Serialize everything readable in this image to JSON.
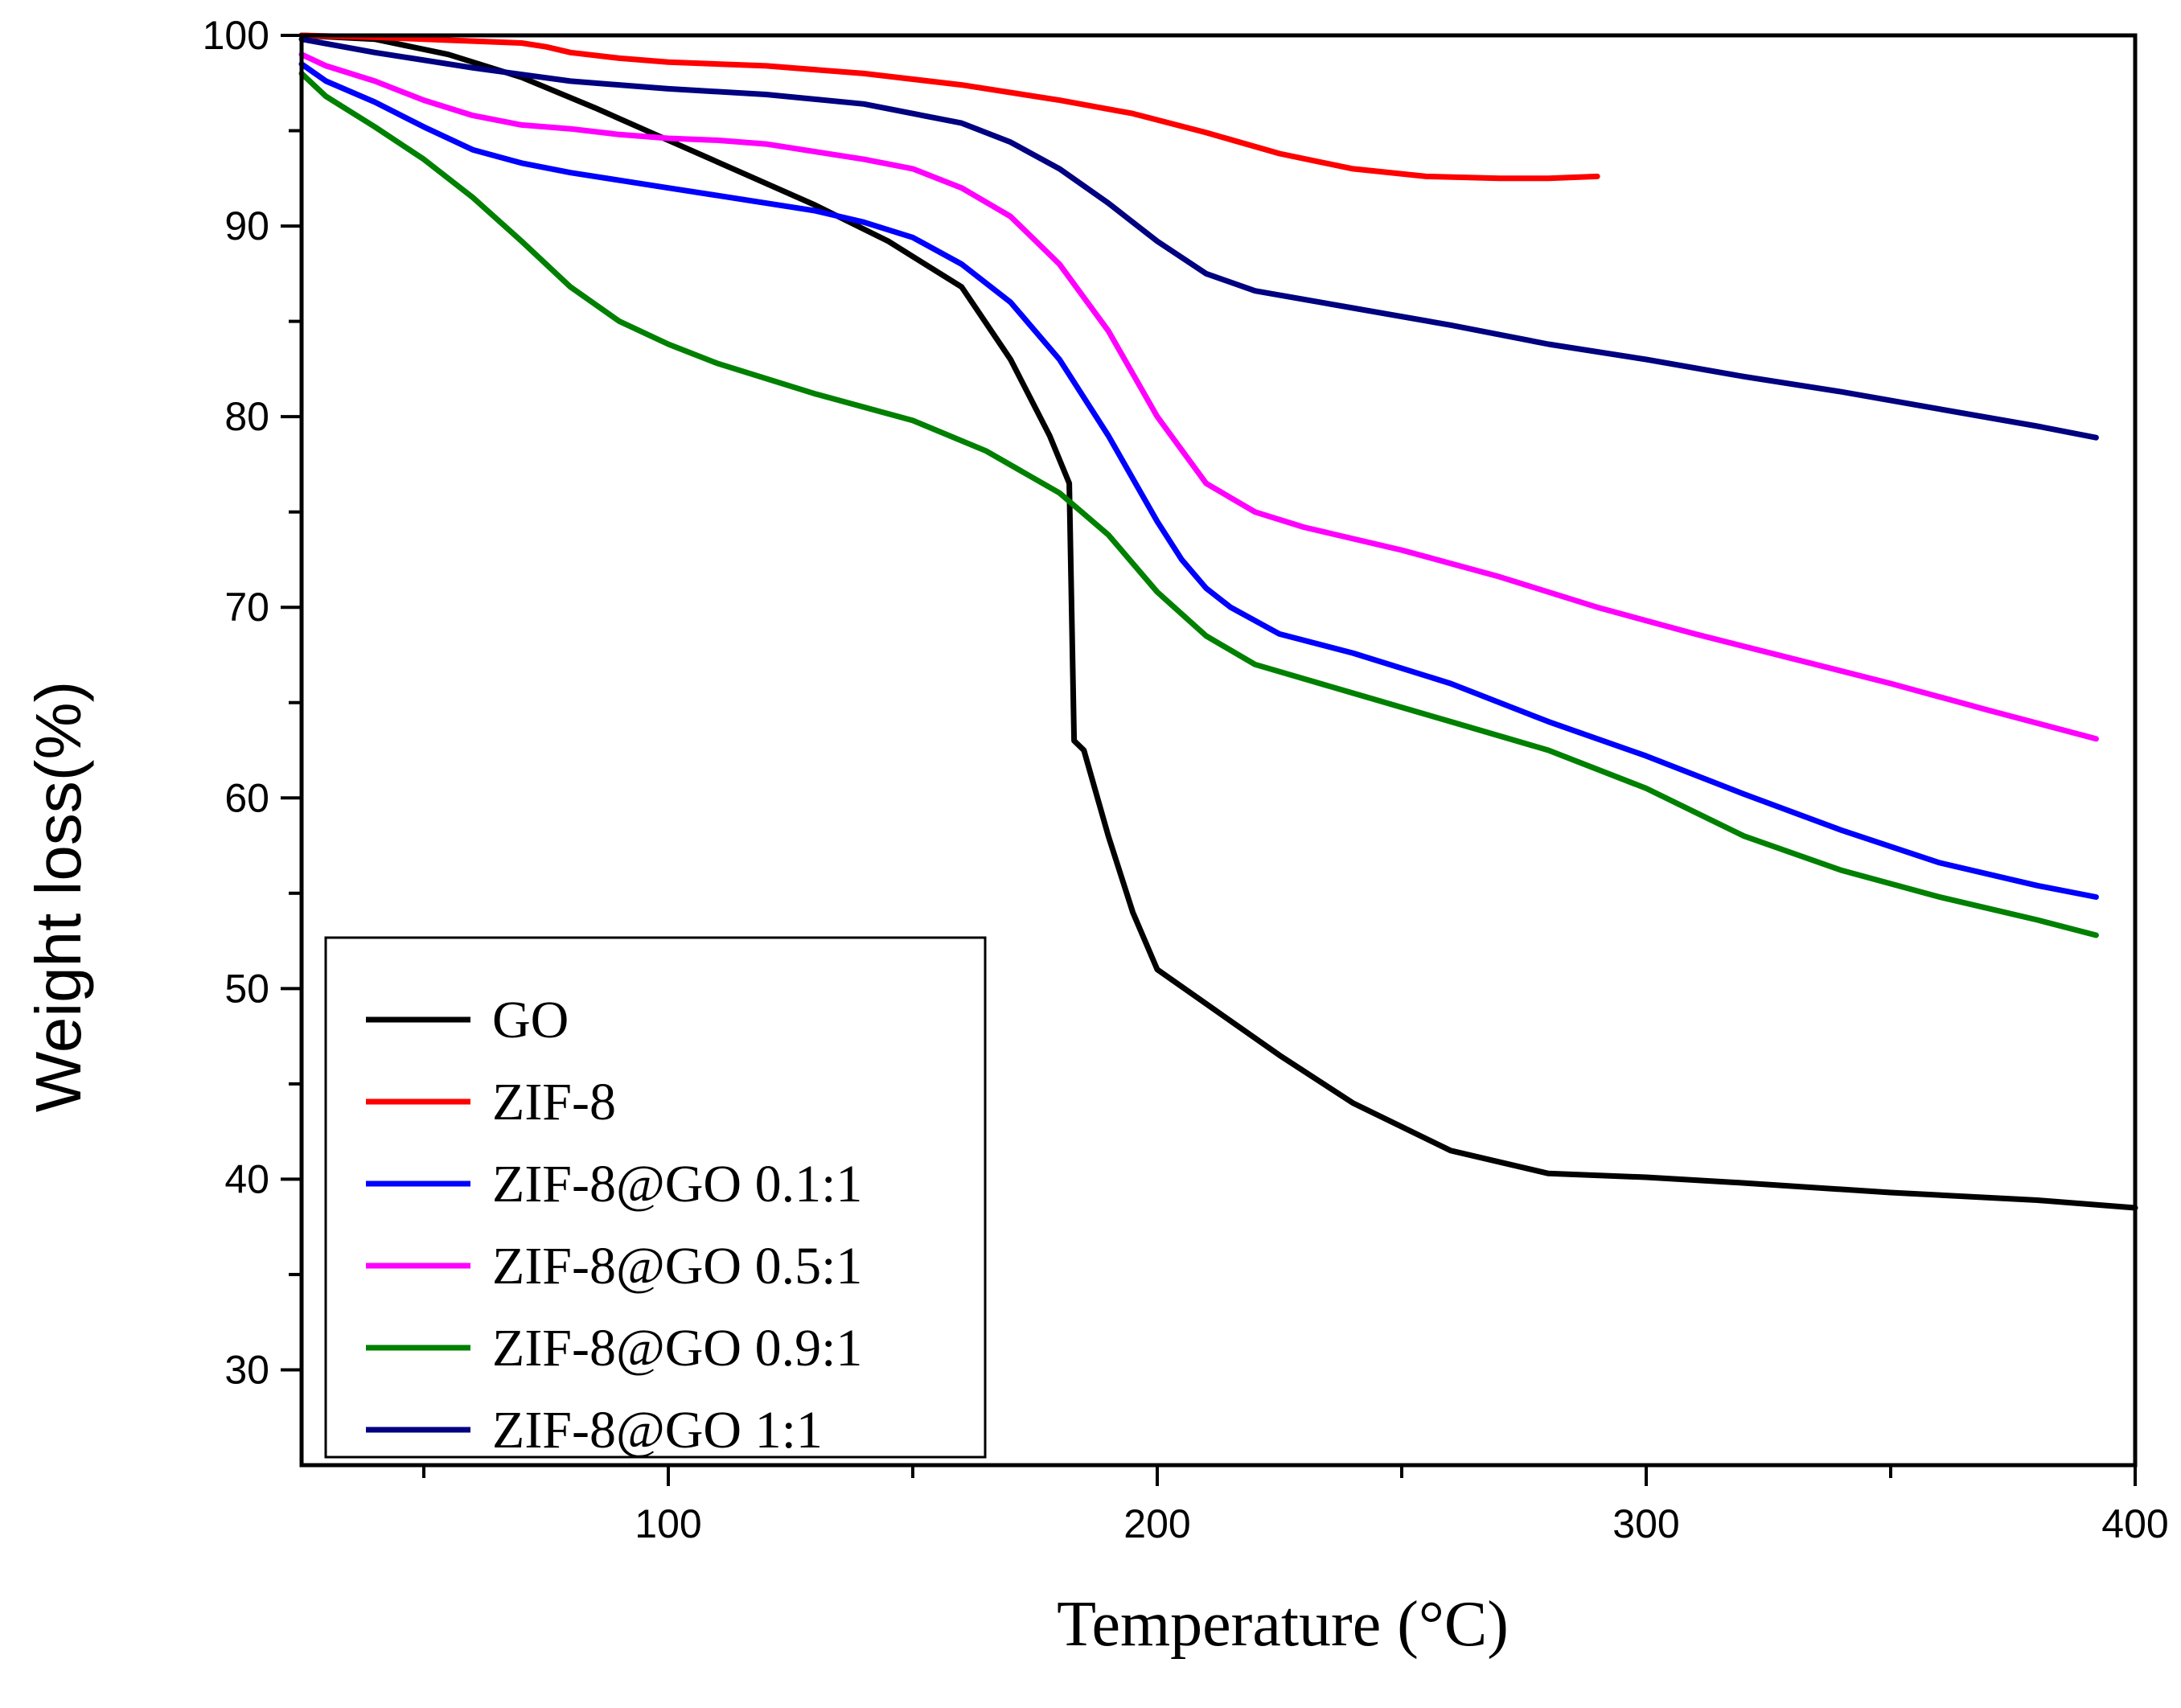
{
  "chart_data": {
    "type": "line",
    "title": "",
    "xlabel": "Temperature (°C)",
    "ylabel": "Weight loss(%)",
    "xlim": [
      25,
      400
    ],
    "ylim": [
      25,
      100
    ],
    "xticks": [
      100,
      200,
      300,
      400
    ],
    "yticks": [
      30,
      40,
      50,
      60,
      70,
      80,
      90,
      100
    ],
    "legend_position": "bottom-left",
    "series": [
      {
        "name": "GO",
        "color": "#000000",
        "x": [
          25,
          40,
          55,
          70,
          85,
          100,
          115,
          130,
          145,
          160,
          170,
          178,
          182,
          183,
          185,
          190,
          195,
          200,
          210,
          225,
          240,
          260,
          280,
          300,
          320,
          350,
          380,
          400
        ],
        "y": [
          100,
          99.8,
          99,
          97.8,
          96.2,
          94.5,
          92.8,
          91.1,
          89.2,
          86.8,
          83,
          79,
          76.5,
          63,
          62.5,
          58,
          54,
          51,
          49.2,
          46.5,
          44,
          41.5,
          40.3,
          40.1,
          39.8,
          39.3,
          38.9,
          38.5
        ]
      },
      {
        "name": "ZIF-8",
        "color": "#ff0000",
        "x": [
          25,
          40,
          60,
          70,
          75,
          80,
          90,
          100,
          120,
          140,
          160,
          180,
          195,
          210,
          225,
          240,
          255,
          270,
          280,
          290
        ],
        "y": [
          100,
          99.9,
          99.7,
          99.6,
          99.4,
          99.1,
          98.8,
          98.6,
          98.4,
          98,
          97.4,
          96.6,
          95.9,
          94.9,
          93.8,
          93,
          92.6,
          92.5,
          92.5,
          92.6
        ]
      },
      {
        "name": "ZIF-8@GO 0.1:1",
        "color": "#0000ff",
        "x": [
          25,
          30,
          40,
          50,
          60,
          70,
          80,
          90,
          100,
          110,
          120,
          130,
          140,
          150,
          160,
          170,
          180,
          190,
          200,
          205,
          210,
          215,
          225,
          240,
          260,
          280,
          300,
          320,
          340,
          360,
          380,
          392
        ],
        "y": [
          98.5,
          97.6,
          96.5,
          95.2,
          94,
          93.3,
          92.8,
          92.4,
          92,
          91.6,
          91.2,
          90.8,
          90.2,
          89.4,
          88,
          86,
          83,
          79,
          74.5,
          72.5,
          71,
          70,
          68.6,
          67.6,
          66,
          64,
          62.2,
          60.2,
          58.3,
          56.6,
          55.4,
          54.8
        ]
      },
      {
        "name": "ZIF-8@GO 0.5:1",
        "color": "#ff00ff",
        "x": [
          25,
          30,
          40,
          50,
          60,
          70,
          80,
          90,
          100,
          110,
          120,
          130,
          140,
          150,
          160,
          170,
          180,
          190,
          200,
          210,
          220,
          230,
          250,
          270,
          290,
          310,
          330,
          350,
          370,
          392
        ],
        "y": [
          99,
          98.4,
          97.6,
          96.6,
          95.8,
          95.3,
          95.1,
          94.8,
          94.6,
          94.5,
          94.3,
          93.9,
          93.5,
          93,
          92,
          90.5,
          88,
          84.5,
          80,
          76.5,
          75,
          74.2,
          73,
          71.6,
          70,
          68.6,
          67.3,
          66,
          64.6,
          63.1
        ]
      },
      {
        "name": "ZIF-8@GO 0.9:1",
        "color": "#008000",
        "x": [
          25,
          30,
          40,
          50,
          60,
          70,
          80,
          90,
          100,
          110,
          130,
          150,
          165,
          180,
          190,
          200,
          210,
          220,
          240,
          260,
          280,
          300,
          320,
          340,
          360,
          380,
          392
        ],
        "y": [
          98,
          96.8,
          95.2,
          93.5,
          91.5,
          89.2,
          86.8,
          85,
          83.8,
          82.8,
          81.2,
          79.8,
          78.2,
          76,
          73.8,
          70.8,
          68.5,
          67,
          65.5,
          64,
          62.5,
          60.5,
          58,
          56.2,
          54.8,
          53.6,
          52.8
        ]
      },
      {
        "name": "ZIF-8@GO 1:1",
        "color": "#000080",
        "x": [
          25,
          40,
          60,
          80,
          100,
          120,
          140,
          160,
          170,
          180,
          190,
          200,
          210,
          220,
          240,
          260,
          280,
          300,
          320,
          340,
          360,
          380,
          392
        ],
        "y": [
          99.8,
          99.1,
          98.3,
          97.6,
          97.2,
          96.9,
          96.4,
          95.4,
          94.4,
          93,
          91.2,
          89.2,
          87.5,
          86.6,
          85.7,
          84.8,
          83.8,
          83,
          82.1,
          81.3,
          80.4,
          79.5,
          78.9
        ]
      }
    ]
  }
}
